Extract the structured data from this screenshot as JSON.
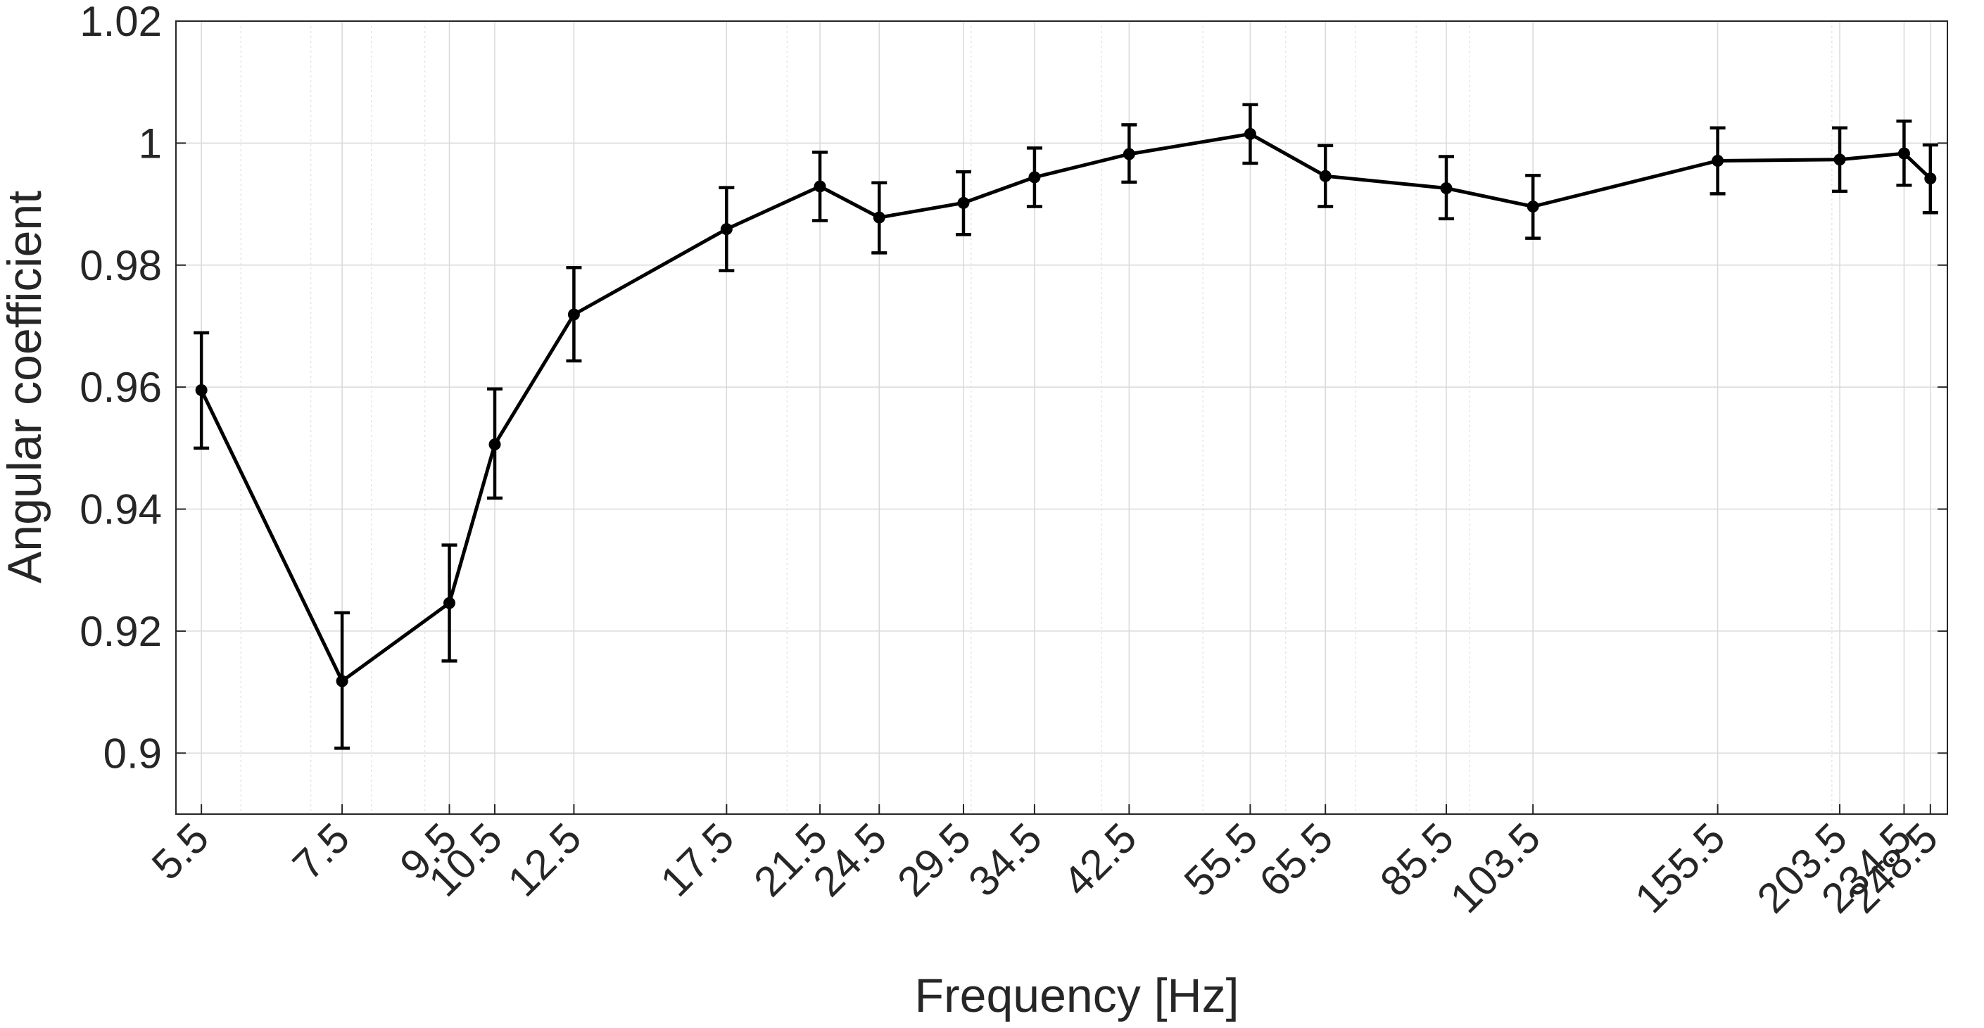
{
  "chart_data": {
    "type": "line",
    "x_scale": "log",
    "xlabel": "Frequency [Hz]",
    "ylabel": "Angular coefficient",
    "x": [
      5.5,
      7.5,
      9.5,
      10.5,
      12.5,
      17.5,
      21.5,
      24.5,
      29.5,
      34.5,
      42.5,
      55.5,
      65.5,
      85.5,
      103.5,
      155.5,
      203.5,
      234.5,
      248.5
    ],
    "x_tick_labels": [
      "5.5",
      "7.5",
      "9.5",
      "10.5",
      "12.5",
      "17.5",
      "21.5",
      "24.5",
      "29.5",
      "34.5",
      "42.5",
      "55.5",
      "65.5",
      "85.5",
      "103.5",
      "155.5",
      "203.5",
      "234.5",
      "248.5"
    ],
    "series": [
      {
        "values": [
          0.9595,
          0.9118,
          0.9246,
          0.9506,
          0.9719,
          0.9859,
          0.9929,
          0.9878,
          0.9902,
          0.9944,
          0.9982,
          1.0015,
          0.9946,
          0.9926,
          0.9896,
          0.9971,
          0.9973,
          0.9983,
          0.9942
        ],
        "error_lower": [
          0.0095,
          0.011,
          0.0095,
          0.0088,
          0.0076,
          0.0068,
          0.0056,
          0.0058,
          0.0052,
          0.0048,
          0.0046,
          0.0048,
          0.005,
          0.005,
          0.0052,
          0.0054,
          0.0052,
          0.0052,
          0.0056
        ],
        "error_upper": [
          0.0094,
          0.0112,
          0.0095,
          0.0091,
          0.0077,
          0.0068,
          0.0056,
          0.0057,
          0.0051,
          0.0048,
          0.0048,
          0.0048,
          0.005,
          0.0052,
          0.0051,
          0.0054,
          0.0052,
          0.0053,
          0.0055
        ],
        "color": "#000000"
      }
    ],
    "y_ticks": [
      0.9,
      0.92,
      0.94,
      0.96,
      0.98,
      1,
      1.02
    ],
    "y_tick_labels": [
      "0.9",
      "0.92",
      "0.94",
      "0.96",
      "0.98",
      "1",
      "1.02"
    ],
    "ylim": [
      0.89,
      1.02
    ],
    "xlim": [
      5.2,
      258
    ],
    "grid": true
  }
}
